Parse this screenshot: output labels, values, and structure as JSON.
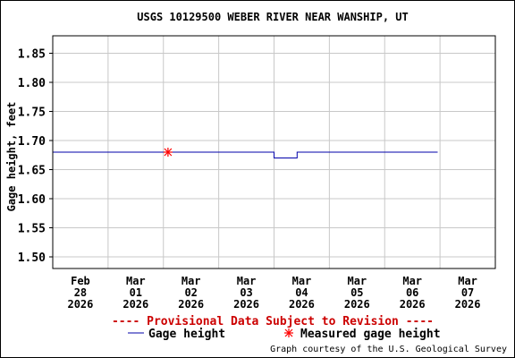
{
  "chart_data": {
    "type": "line",
    "title": "USGS 10129500 WEBER RIVER NEAR WANSHIP, UT",
    "ylabel": "Gage height, feet",
    "xlabel": "",
    "ylim": [
      1.48,
      1.88
    ],
    "yticks": [
      "1.85",
      "1.80",
      "1.75",
      "1.70",
      "1.65",
      "1.60",
      "1.55",
      "1.50"
    ],
    "ytick_values": [
      1.85,
      1.8,
      1.75,
      1.7,
      1.65,
      1.6,
      1.55,
      1.5
    ],
    "xlim_days": [
      "2026-02-28",
      "2026-03-08"
    ],
    "xticks": [
      {
        "month": "Feb",
        "day": "28",
        "year": "2026",
        "date": "2026-02-28"
      },
      {
        "month": "Mar",
        "day": "01",
        "year": "2026",
        "date": "2026-03-01"
      },
      {
        "month": "Mar",
        "day": "02",
        "year": "2026",
        "date": "2026-03-02"
      },
      {
        "month": "Mar",
        "day": "03",
        "year": "2026",
        "date": "2026-03-03"
      },
      {
        "month": "Mar",
        "day": "04",
        "year": "2026",
        "date": "2026-03-04"
      },
      {
        "month": "Mar",
        "day": "05",
        "year": "2026",
        "date": "2026-03-05"
      },
      {
        "month": "Mar",
        "day": "06",
        "year": "2026",
        "date": "2026-03-06"
      },
      {
        "month": "Mar",
        "day": "07",
        "year": "2026",
        "date": "2026-03-07"
      }
    ],
    "grid": true,
    "series": [
      {
        "name": "Gage height",
        "color": "#0000aa",
        "style": "step",
        "points": [
          {
            "x": "2026-02-28 00:00",
            "y": 1.68
          },
          {
            "x": "2026-03-04 00:00",
            "y": 1.68
          },
          {
            "x": "2026-03-04 00:00",
            "y": 1.67
          },
          {
            "x": "2026-03-04 10:00",
            "y": 1.67
          },
          {
            "x": "2026-03-04 10:00",
            "y": 1.68
          },
          {
            "x": "2026-03-06 23:00",
            "y": 1.68
          }
        ]
      },
      {
        "name": "Measured gage height",
        "color": "#ff0000",
        "style": "marker",
        "marker": "asterisk",
        "points": [
          {
            "x": "2026-03-02 02:00",
            "y": 1.68
          }
        ]
      }
    ],
    "legend_position": "bottom",
    "provisional_note": "---- Provisional Data Subject to Revision ----",
    "credit": "Graph courtesy of the U.S. Geological Survey"
  }
}
